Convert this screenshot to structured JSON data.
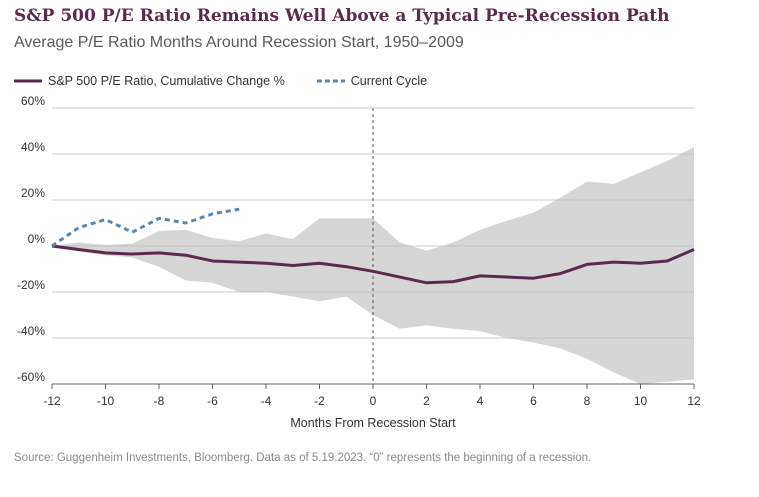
{
  "header": {
    "title": "S&P 500 P/E Ratio Remains Well Above a Typical Pre-Recession Path",
    "subtitle": "Average P/E Ratio Months Around Recession Start, 1950–2009"
  },
  "footer": {
    "source": "Source: Guggenheim Investments, Bloomberg. Data as of 5.19.2023. “0” represents the beginning of a recession."
  },
  "colors": {
    "avg_line": "#5a2a4f",
    "current_line": "#5b86b4",
    "band": "#d6d6d6",
    "grid": "#bdbdbd",
    "zero_marker": "#555555"
  },
  "chart_data": {
    "type": "line",
    "title": "S&P 500 P/E Ratio Remains Well Above a Typical Pre-Recession Path",
    "subtitle": "Average P/E Ratio Months Around Recession Start, 1950–2009",
    "xlabel": "Months From Recession Start",
    "ylabel": "",
    "xlim": [
      -12,
      12
    ],
    "ylim": [
      -60,
      60
    ],
    "x_ticks": [
      -12,
      -10,
      -8,
      -6,
      -4,
      -2,
      0,
      2,
      4,
      6,
      8,
      10,
      12
    ],
    "y_ticks": [
      -60,
      -40,
      -20,
      0,
      20,
      40,
      60
    ],
    "y_tick_labels": [
      "-60%",
      "-40%",
      "-20%",
      "0%",
      "20%",
      "40%",
      "60%"
    ],
    "grid": "horizontal",
    "legend_position": "top-left",
    "vertical_marker_x": 0,
    "series": [
      {
        "name": "S&P 500 P/E Ratio, Cumulative Change %",
        "style": "solid",
        "x": [
          -12,
          -11,
          -10,
          -9,
          -8,
          -7,
          -6,
          -5,
          -4,
          -3,
          -2,
          -1,
          0,
          1,
          2,
          3,
          4,
          5,
          6,
          7,
          8,
          9,
          10,
          11,
          12
        ],
        "values": [
          0,
          -1.5,
          -3,
          -3.5,
          -3,
          -4,
          -6.5,
          -7,
          -7.5,
          -8.5,
          -7.5,
          -9,
          -11,
          -13.5,
          -16,
          -15.5,
          -13,
          -13.5,
          -14,
          -12,
          -8,
          -7,
          -7.5,
          -6.5,
          -1.5
        ]
      },
      {
        "name": "Current Cycle",
        "style": "dashed",
        "x": [
          -12,
          -11,
          -10,
          -9,
          -8,
          -7,
          -6,
          -5
        ],
        "values": [
          0,
          8,
          11.5,
          6,
          12,
          10,
          14,
          16
        ]
      }
    ],
    "range_band": {
      "x": [
        -12,
        -11,
        -10,
        -9,
        -8,
        -7,
        -6,
        -5,
        -4,
        -3,
        -2,
        -1,
        0,
        1,
        2,
        3,
        4,
        5,
        6,
        7,
        8,
        9,
        10,
        11,
        12
      ],
      "upper": [
        0,
        1.5,
        0.5,
        1,
        6.5,
        7,
        3.5,
        2,
        5.5,
        3,
        12,
        12,
        12,
        1.5,
        -2,
        1.5,
        7,
        11,
        14.5,
        21,
        28,
        27,
        32,
        37,
        43
      ],
      "lower": [
        0,
        -2.5,
        -4,
        -5,
        -9,
        -15,
        -16,
        -20,
        -20,
        -22,
        -24,
        -22,
        -30,
        -36,
        -34.5,
        -36,
        -37,
        -40,
        -42,
        -44.5,
        -49,
        -55,
        -60,
        -59,
        -58
      ]
    }
  }
}
